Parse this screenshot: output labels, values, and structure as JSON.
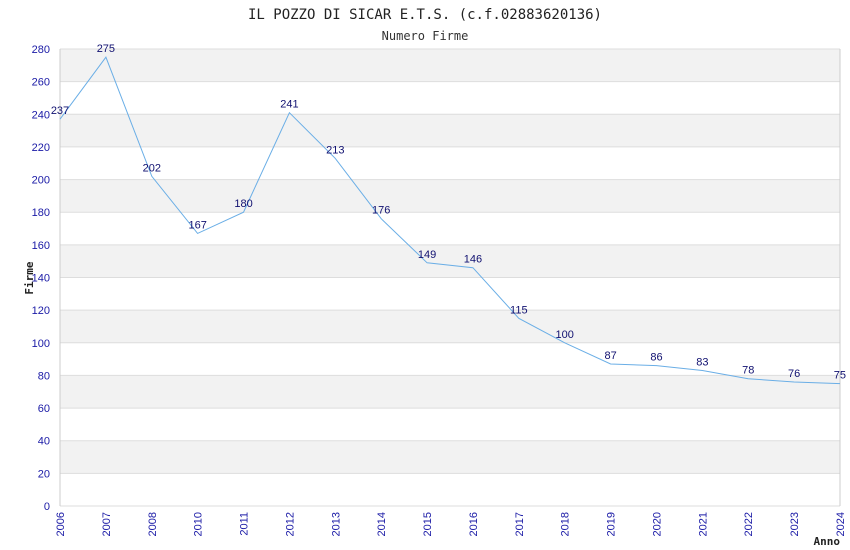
{
  "chart_data": {
    "type": "line",
    "title": "IL POZZO DI SICAR E.T.S. (c.f.02883620136)",
    "subtitle": "Numero Firme",
    "xlabel": "Anno",
    "ylabel": "Firme",
    "ylim": [
      0,
      280
    ],
    "ystep": 20,
    "grid": true,
    "colors": {
      "line": "#6aaee6",
      "band": "#f2f2f2",
      "gridline": "#dddddd",
      "tick": "#1a1aa6",
      "label": "#101070"
    },
    "categories": [
      "2006",
      "2007",
      "2008",
      "2010",
      "2011",
      "2012",
      "2013",
      "2014",
      "2015",
      "2016",
      "2017",
      "2018",
      "2019",
      "2020",
      "2021",
      "2022",
      "2023",
      "2024"
    ],
    "values": [
      237,
      275,
      202,
      167,
      180,
      241,
      213,
      176,
      149,
      146,
      115,
      100,
      87,
      86,
      83,
      78,
      76,
      75
    ]
  }
}
